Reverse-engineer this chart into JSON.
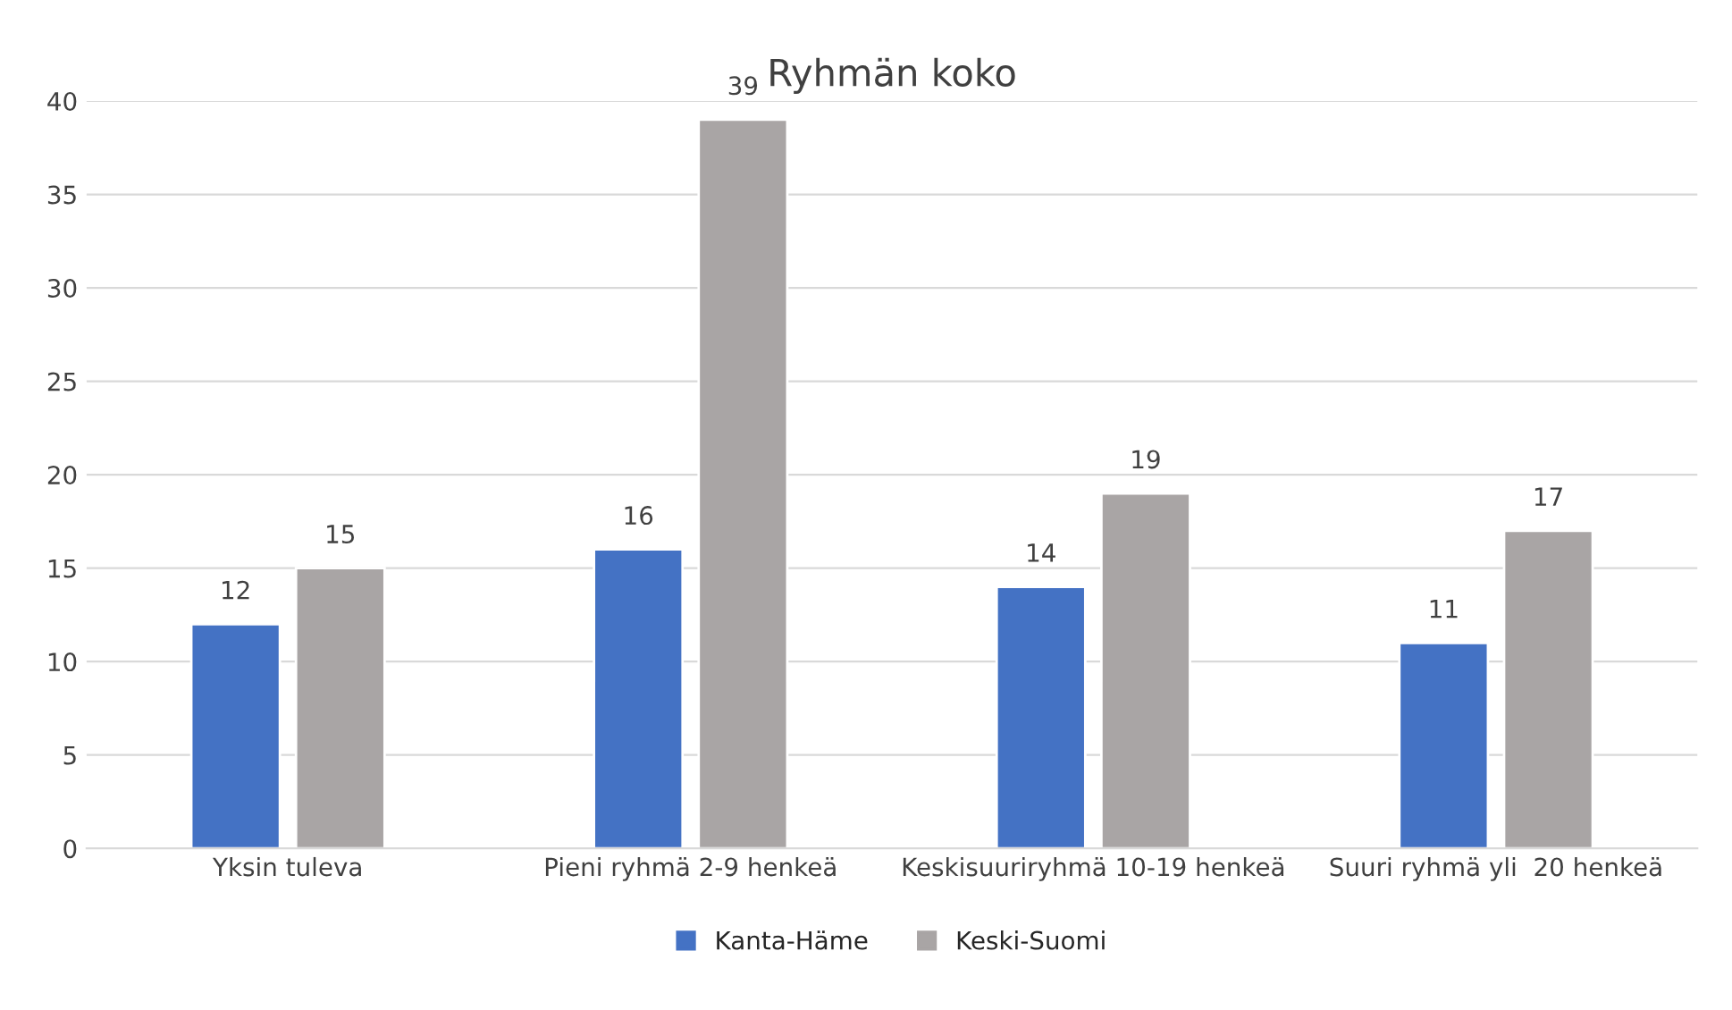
{
  "chart_data": {
    "type": "bar",
    "title": "Ryhmän koko",
    "categories": [
      "Yksin tuleva",
      "Pieni ryhmä 2-9 henkeä",
      "Keskisuuriryhmä 10-19 henkeä",
      "Suuri ryhmä yli  20 henkeä"
    ],
    "series": [
      {
        "name": "Kanta-Häme",
        "color": "#4472c4",
        "values": [
          12,
          16,
          14,
          11
        ]
      },
      {
        "name": "Keski-Suomi",
        "color": "#a9a5a5",
        "values": [
          15,
          39,
          19,
          17
        ]
      }
    ],
    "ylim": [
      0,
      40
    ],
    "yticks": [
      0,
      5,
      10,
      15,
      20,
      25,
      30,
      35,
      40
    ],
    "grid": "y",
    "legend": "bottom",
    "data_labels": true
  }
}
